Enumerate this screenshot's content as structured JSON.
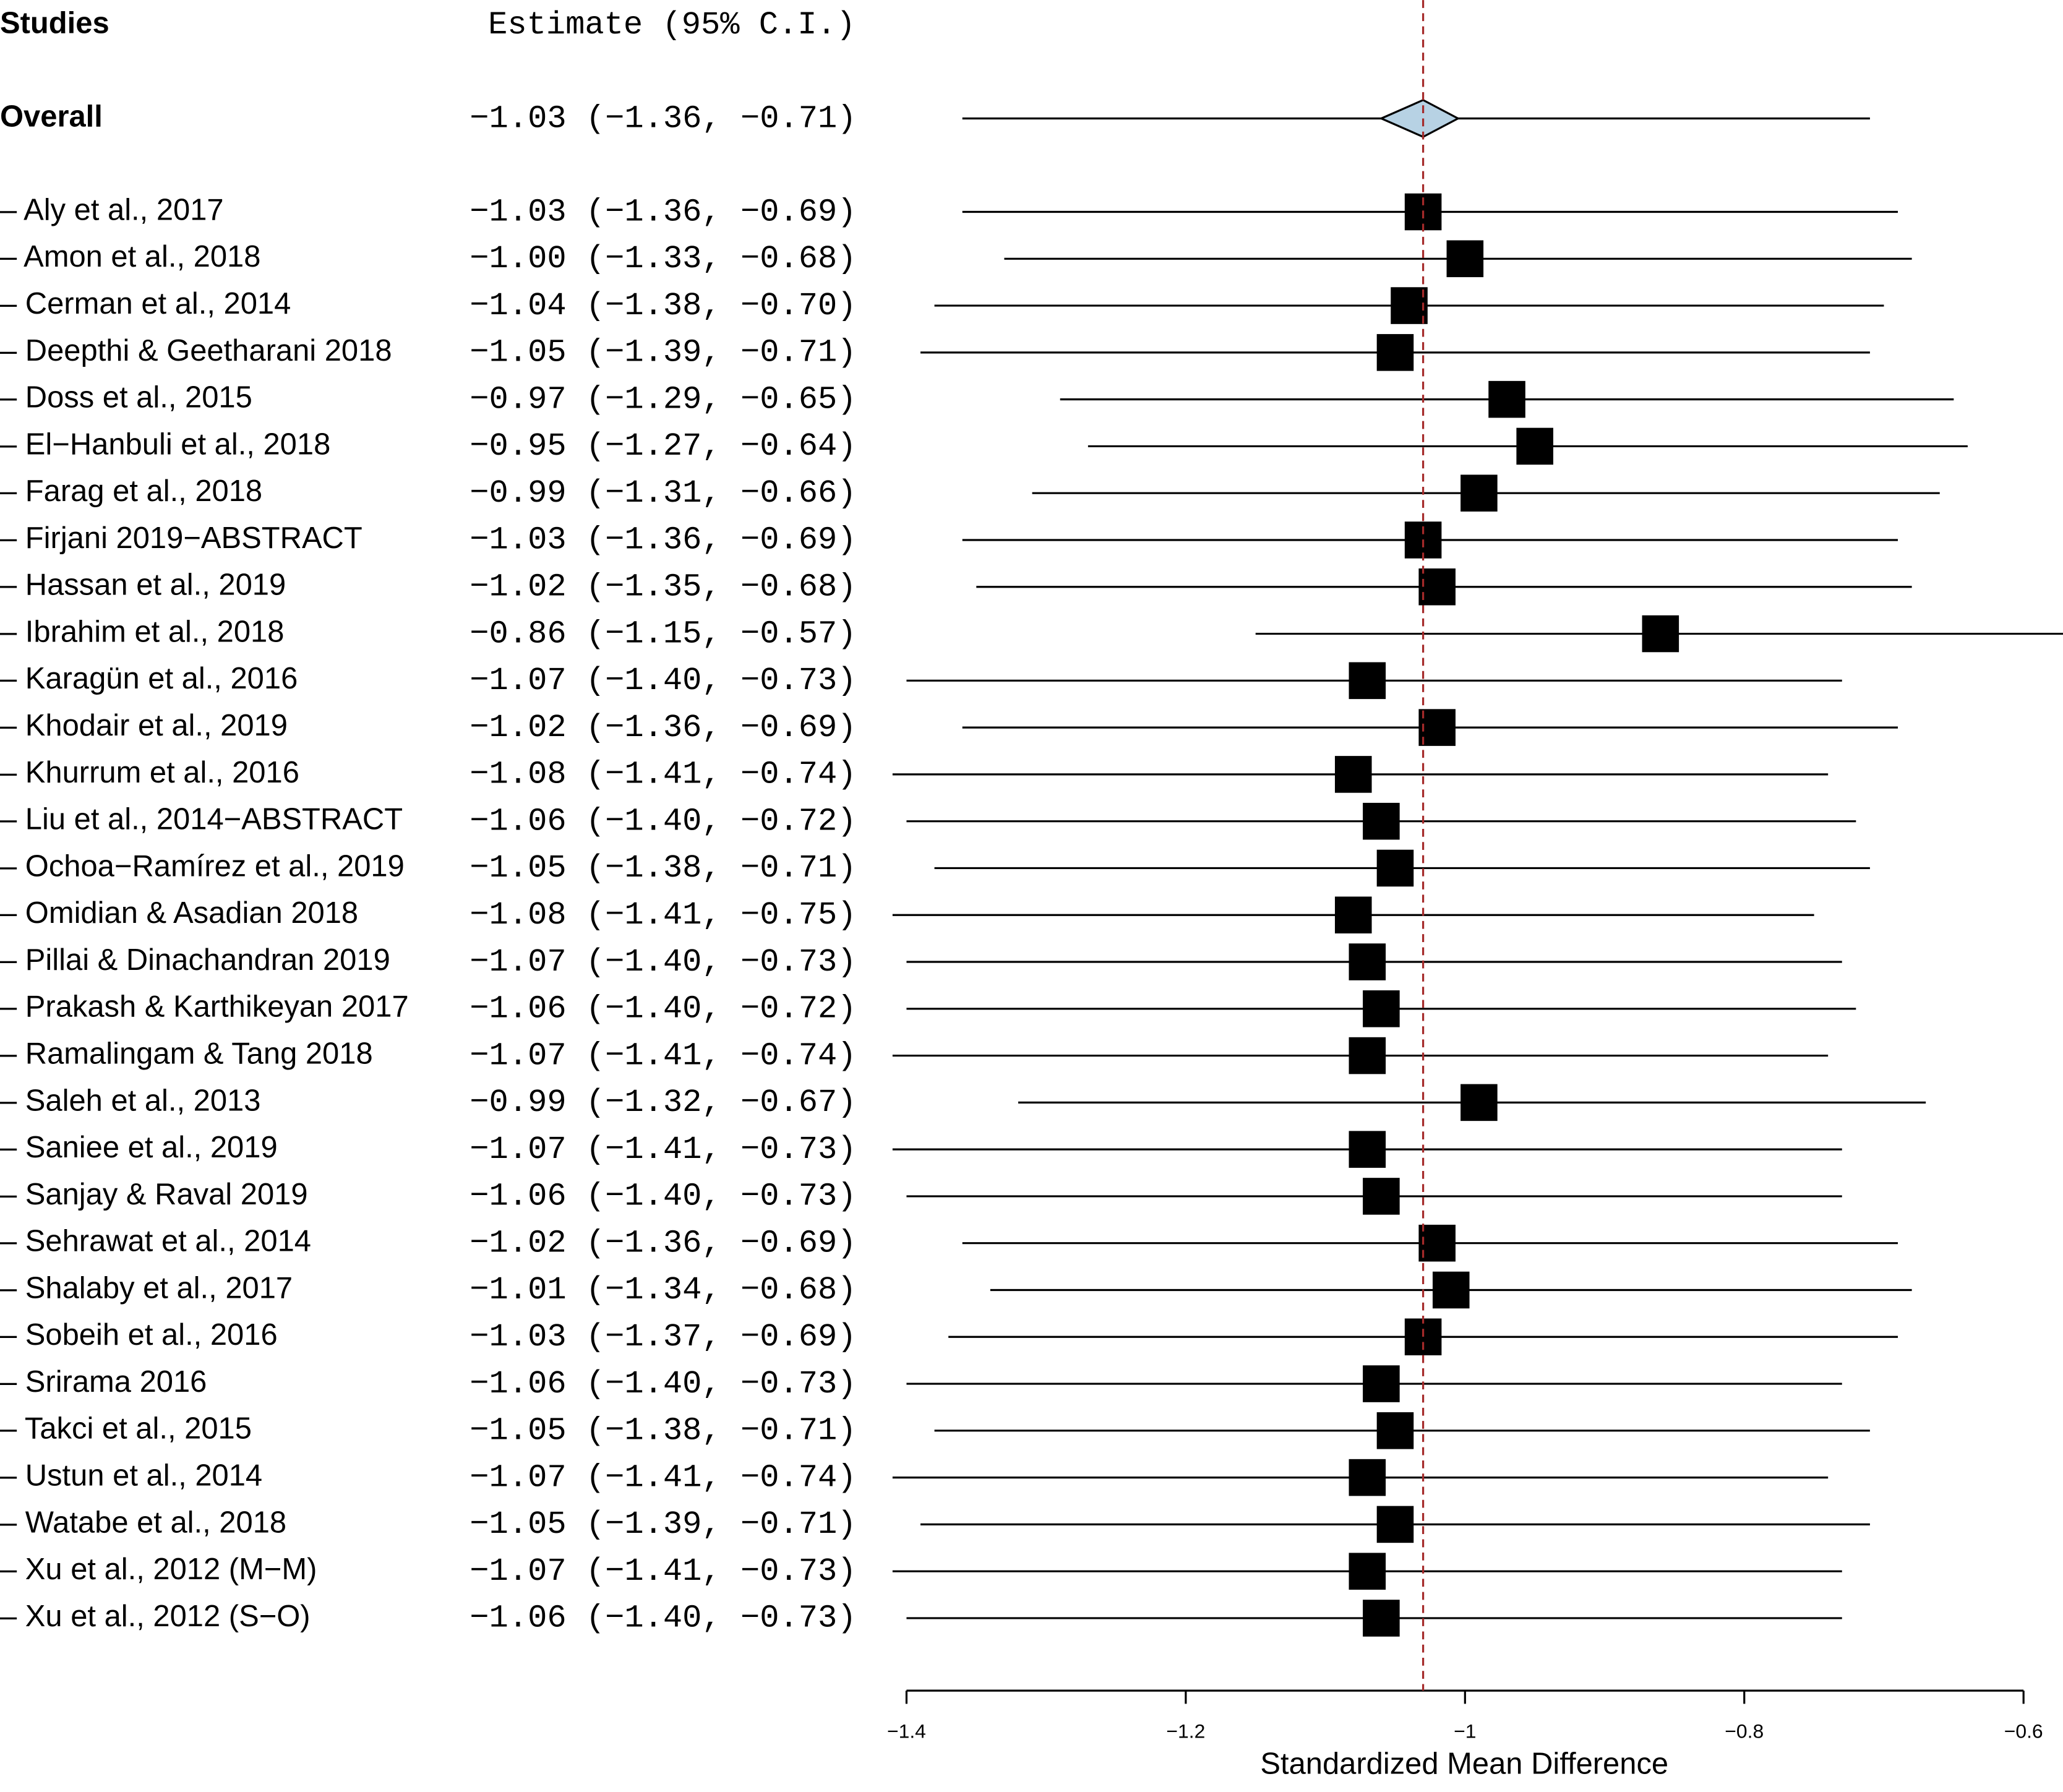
{
  "chart_data": {
    "type": "forest",
    "column_headers": [
      "Studies",
      "Estimate (95% C.I.)"
    ],
    "xlabel": "Standardized Mean Difference",
    "xlim": [
      -1.4,
      -0.6
    ],
    "xticks": [
      {
        "value": -1.4,
        "label": "−1.4"
      },
      {
        "value": -1.2,
        "label": "−1.2"
      },
      {
        "value": -1,
        "label": "−1"
      },
      {
        "value": -0.8,
        "label": "−0.8"
      },
      {
        "value": -0.6,
        "label": "−0.6"
      }
    ],
    "reference_line": true,
    "square_color": "#000000",
    "diamond_color": "#b7d2e4",
    "reference_color": "#a52a2a",
    "overall": {
      "label": "Overall",
      "value": -1.03,
      "lower": -1.36,
      "upper": -0.71,
      "value_label": "−1.03 (−1.36, −0.71)",
      "diamond": [
        -1.06,
        -1.005
      ]
    },
    "categories": [
      "– Aly et al., 2017",
      "– Amon et al., 2018",
      "– Cerman et al., 2014",
      "– Deepthi & Geetharani 2018",
      "– Doss et al., 2015",
      "– El−Hanbuli et al., 2018",
      "– Farag et al., 2018",
      "– Firjani 2019−ABSTRACT",
      "– Hassan et al., 2019",
      "– Ibrahim et al., 2018",
      "– Karagün et al., 2016",
      "– Khodair et al., 2019",
      "– Khurrum et al., 2016",
      "– Liu et al., 2014−ABSTRACT",
      "– Ochoa−Ramírez et al., 2019",
      "– Omidian & Asadian 2018",
      "– Pillai & Dinachandran 2019",
      "– Prakash & Karthikeyan 2017",
      "– Ramalingam & Tang 2018",
      "– Saleh et al., 2013",
      "– Saniee et al., 2019",
      "– Sanjay & Raval 2019",
      "– Sehrawat et al., 2014",
      "– Shalaby et al., 2017",
      "– Sobeih et al., 2016",
      "– Srirama 2016",
      "– Takci et al., 2015",
      "– Ustun et al., 2014",
      "– Watabe et al., 2018",
      "– Xu et al., 2012 (M−M)",
      "– Xu et al., 2012 (S−O)"
    ],
    "values": [
      -1.03,
      -1.0,
      -1.04,
      -1.05,
      -0.97,
      -0.95,
      -0.99,
      -1.03,
      -1.02,
      -0.86,
      -1.07,
      -1.02,
      -1.08,
      -1.06,
      -1.05,
      -1.08,
      -1.07,
      -1.06,
      -1.07,
      -0.99,
      -1.07,
      -1.06,
      -1.02,
      -1.01,
      -1.03,
      -1.06,
      -1.05,
      -1.07,
      -1.05,
      -1.07,
      -1.06
    ],
    "lower": [
      -1.36,
      -1.33,
      -1.38,
      -1.39,
      -1.29,
      -1.27,
      -1.31,
      -1.36,
      -1.35,
      -1.15,
      -1.4,
      -1.36,
      -1.41,
      -1.4,
      -1.38,
      -1.41,
      -1.4,
      -1.4,
      -1.41,
      -1.32,
      -1.41,
      -1.4,
      -1.36,
      -1.34,
      -1.37,
      -1.4,
      -1.38,
      -1.41,
      -1.39,
      -1.41,
      -1.4
    ],
    "upper": [
      -0.69,
      -0.68,
      -0.7,
      -0.71,
      -0.65,
      -0.64,
      -0.66,
      -0.69,
      -0.68,
      -0.57,
      -0.73,
      -0.69,
      -0.74,
      -0.72,
      -0.71,
      -0.75,
      -0.73,
      -0.72,
      -0.74,
      -0.67,
      -0.73,
      -0.73,
      -0.69,
      -0.68,
      -0.69,
      -0.73,
      -0.71,
      -0.74,
      -0.71,
      -0.73,
      -0.73
    ],
    "value_labels": [
      "−1.03 (−1.36, −0.69)",
      "−1.00 (−1.33, −0.68)",
      "−1.04 (−1.38, −0.70)",
      "−1.05 (−1.39, −0.71)",
      "−0.97 (−1.29, −0.65)",
      "−0.95 (−1.27, −0.64)",
      "−0.99 (−1.31, −0.66)",
      "−1.03 (−1.36, −0.69)",
      "−1.02 (−1.35, −0.68)",
      "−0.86 (−1.15, −0.57)",
      "−1.07 (−1.40, −0.73)",
      "−1.02 (−1.36, −0.69)",
      "−1.08 (−1.41, −0.74)",
      "−1.06 (−1.40, −0.72)",
      "−1.05 (−1.38, −0.71)",
      "−1.08 (−1.41, −0.75)",
      "−1.07 (−1.40, −0.73)",
      "−1.06 (−1.40, −0.72)",
      "−1.07 (−1.41, −0.74)",
      "−0.99 (−1.32, −0.67)",
      "−1.07 (−1.41, −0.73)",
      "−1.06 (−1.40, −0.73)",
      "−1.02 (−1.36, −0.69)",
      "−1.01 (−1.34, −0.68)",
      "−1.03 (−1.37, −0.69)",
      "−1.06 (−1.40, −0.73)",
      "−1.05 (−1.38, −0.71)",
      "−1.07 (−1.41, −0.74)",
      "−1.05 (−1.39, −0.71)",
      "−1.07 (−1.41, −0.73)",
      "−1.06 (−1.40, −0.73)"
    ]
  }
}
